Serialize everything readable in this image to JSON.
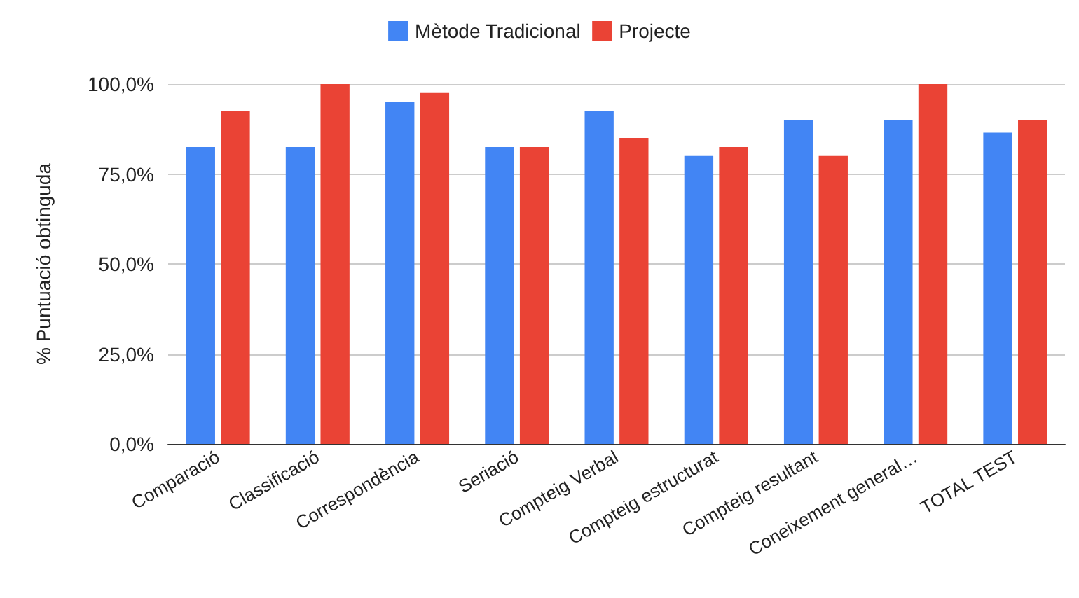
{
  "chart_data": {
    "type": "bar",
    "ylabel": "% Puntuació obtinguda",
    "categories": [
      "Comparació",
      "Classificació",
      "Correspondència",
      "Seriació",
      "Compteig Verbal",
      "Compteig estructurat",
      "Compteig resultant",
      "Coneixement general…",
      "TOTAL TEST"
    ],
    "series": [
      {
        "name": "Mètode Tradicional",
        "color": "#4285f4",
        "values": [
          82.5,
          82.5,
          95,
          82.5,
          92.5,
          80,
          90,
          90,
          86.5
        ]
      },
      {
        "name": "Projecte",
        "color": "#ea4335",
        "values": [
          92.5,
          100,
          97.5,
          82.5,
          85,
          82.5,
          80,
          100,
          90
        ]
      }
    ],
    "ylim": [
      0,
      100
    ],
    "yticks": [
      {
        "value": 0,
        "label": "0,0%"
      },
      {
        "value": 25,
        "label": "25,0%"
      },
      {
        "value": 50,
        "label": "50,0%"
      },
      {
        "value": 75,
        "label": "75,0%"
      },
      {
        "value": 100,
        "label": "100,0%"
      }
    ],
    "grid": "y",
    "legend": "top"
  }
}
